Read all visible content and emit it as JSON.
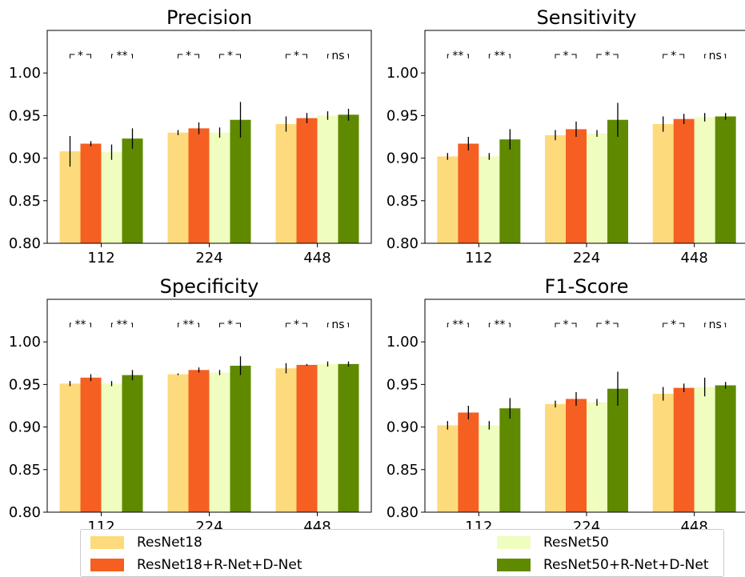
{
  "colors": {
    "ResNet18": "#FDDB7C",
    "ResNet18+R-Net+D-Net": "#F55F22",
    "ResNet50": "#EFFDBF",
    "ResNet50+R-Net+D-Net": "#5F8A00"
  },
  "legend": {
    "items": [
      {
        "label": "ResNet18",
        "color": "#FDDB7C"
      },
      {
        "label": "ResNet50",
        "color": "#EFFDBF"
      },
      {
        "label": "ResNet18+R-Net+D-Net",
        "color": "#F55F22"
      },
      {
        "label": "ResNet50+R-Net+D-Net",
        "color": "#5F8A00"
      }
    ]
  },
  "chart_data": [
    {
      "type": "bar",
      "title": "Precision",
      "categories": [
        "112",
        "224",
        "448"
      ],
      "ylim": [
        0.8,
        1.05
      ],
      "yticks": [
        "0.80",
        "0.85",
        "0.90",
        "0.95",
        "1.00"
      ],
      "series": [
        {
          "name": "ResNet18",
          "values": [
            0.908,
            0.93,
            0.94
          ],
          "errors": [
            0.018,
            0.003,
            0.009
          ]
        },
        {
          "name": "ResNet18+R-Net+D-Net",
          "values": [
            0.917,
            0.935,
            0.947
          ],
          "errors": [
            0.003,
            0.007,
            0.006
          ]
        },
        {
          "name": "ResNet50",
          "values": [
            0.907,
            0.93,
            0.95
          ],
          "errors": [
            0.009,
            0.006,
            0.005
          ]
        },
        {
          "name": "ResNet50+R-Net+D-Net",
          "values": [
            0.923,
            0.945,
            0.951
          ],
          "errors": [
            0.012,
            0.021,
            0.007
          ]
        }
      ],
      "significance": [
        [
          "*",
          "**"
        ],
        [
          "*",
          "*"
        ],
        [
          "*",
          "ns"
        ]
      ]
    },
    {
      "type": "bar",
      "title": "Sensitivity",
      "categories": [
        "112",
        "224",
        "448"
      ],
      "ylim": [
        0.8,
        1.05
      ],
      "yticks": [
        "0.80",
        "0.85",
        "0.90",
        "0.95",
        "1.00"
      ],
      "series": [
        {
          "name": "ResNet18",
          "values": [
            0.902,
            0.927,
            0.94
          ],
          "errors": [
            0.004,
            0.006,
            0.009
          ]
        },
        {
          "name": "ResNet18+R-Net+D-Net",
          "values": [
            0.917,
            0.934,
            0.946
          ],
          "errors": [
            0.008,
            0.009,
            0.006
          ]
        },
        {
          "name": "ResNet50",
          "values": [
            0.902,
            0.929,
            0.948
          ],
          "errors": [
            0.004,
            0.004,
            0.005
          ]
        },
        {
          "name": "ResNet50+R-Net+D-Net",
          "values": [
            0.922,
            0.945,
            0.949
          ],
          "errors": [
            0.012,
            0.02,
            0.004
          ]
        }
      ],
      "significance": [
        [
          "**",
          "**"
        ],
        [
          "*",
          "*"
        ],
        [
          "*",
          "ns"
        ]
      ]
    },
    {
      "type": "bar",
      "title": "Specificity",
      "categories": [
        "112",
        "224",
        "448"
      ],
      "ylim": [
        0.8,
        1.05
      ],
      "yticks": [
        "0.80",
        "0.85",
        "0.90",
        "0.95",
        "1.00"
      ],
      "series": [
        {
          "name": "ResNet18",
          "values": [
            0.951,
            0.962,
            0.969
          ],
          "errors": [
            0.003,
            0.001,
            0.006
          ]
        },
        {
          "name": "ResNet18+R-Net+D-Net",
          "values": [
            0.958,
            0.967,
            0.973
          ],
          "errors": [
            0.004,
            0.003,
            0.001
          ]
        },
        {
          "name": "ResNet50",
          "values": [
            0.951,
            0.964,
            0.974
          ],
          "errors": [
            0.003,
            0.003,
            0.003
          ]
        },
        {
          "name": "ResNet50+R-Net+D-Net",
          "values": [
            0.961,
            0.972,
            0.974
          ],
          "errors": [
            0.006,
            0.011,
            0.003
          ]
        }
      ],
      "significance": [
        [
          "**",
          "**"
        ],
        [
          "**",
          "*"
        ],
        [
          "*",
          "ns"
        ]
      ]
    },
    {
      "type": "bar",
      "title": "F1-Score",
      "categories": [
        "112",
        "224",
        "448"
      ],
      "ylim": [
        0.8,
        1.05
      ],
      "yticks": [
        "0.80",
        "0.85",
        "0.90",
        "0.95",
        "1.00"
      ],
      "series": [
        {
          "name": "ResNet18",
          "values": [
            0.902,
            0.927,
            0.939
          ],
          "errors": [
            0.005,
            0.004,
            0.008
          ]
        },
        {
          "name": "ResNet18+R-Net+D-Net",
          "values": [
            0.917,
            0.933,
            0.946
          ],
          "errors": [
            0.008,
            0.008,
            0.005
          ]
        },
        {
          "name": "ResNet50",
          "values": [
            0.902,
            0.929,
            0.947
          ],
          "errors": [
            0.005,
            0.004,
            0.011
          ]
        },
        {
          "name": "ResNet50+R-Net+D-Net",
          "values": [
            0.922,
            0.945,
            0.949
          ],
          "errors": [
            0.012,
            0.02,
            0.004
          ]
        }
      ],
      "significance": [
        [
          "**",
          "**"
        ],
        [
          "*",
          "*"
        ],
        [
          "*",
          "ns"
        ]
      ]
    }
  ]
}
